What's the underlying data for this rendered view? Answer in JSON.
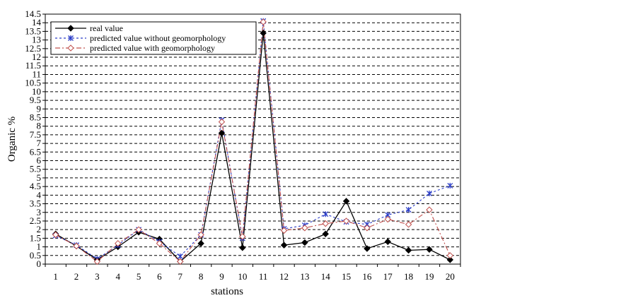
{
  "chart_data": {
    "type": "line",
    "xlabel": "stations",
    "ylabel": "Organic %",
    "ylim": [
      0,
      14.5
    ],
    "ytick_step": 0.5,
    "grid": {
      "horizontal": true,
      "vertical": false,
      "style": "dashed"
    },
    "legend_position": "top-left",
    "categories": [
      "1",
      "2",
      "3",
      "4",
      "5",
      "6",
      "7",
      "8",
      "9",
      "10",
      "11",
      "12",
      "13",
      "14",
      "15",
      "16",
      "17",
      "18",
      "19",
      "20"
    ],
    "series": [
      {
        "name": "real value",
        "color": "#000000",
        "dash": "solid",
        "marker": "diamond-filled",
        "values": [
          1.75,
          1.05,
          0.25,
          1.0,
          1.85,
          1.45,
          0.15,
          1.2,
          7.6,
          0.95,
          13.4,
          1.1,
          1.25,
          1.75,
          3.65,
          0.9,
          1.3,
          0.8,
          0.85,
          0.25
        ]
      },
      {
        "name": "predicted value without geomorphology",
        "color": "#2a3cc7",
        "dash": "dotted",
        "marker": "star",
        "values": [
          1.65,
          1.1,
          0.3,
          1.1,
          2.0,
          1.3,
          0.45,
          1.7,
          8.35,
          1.5,
          14.1,
          2.05,
          2.25,
          2.9,
          2.45,
          2.3,
          2.85,
          3.15,
          4.1,
          4.55
        ]
      },
      {
        "name": "predicted value with geomorphology",
        "color": "#c0504d",
        "dash": "dashdot",
        "marker": "diamond-open",
        "values": [
          1.7,
          1.05,
          0.15,
          1.2,
          2.0,
          1.2,
          0.15,
          1.7,
          8.25,
          1.6,
          14.05,
          1.95,
          2.1,
          2.35,
          2.5,
          2.1,
          2.6,
          2.3,
          3.15,
          0.5
        ]
      }
    ]
  }
}
